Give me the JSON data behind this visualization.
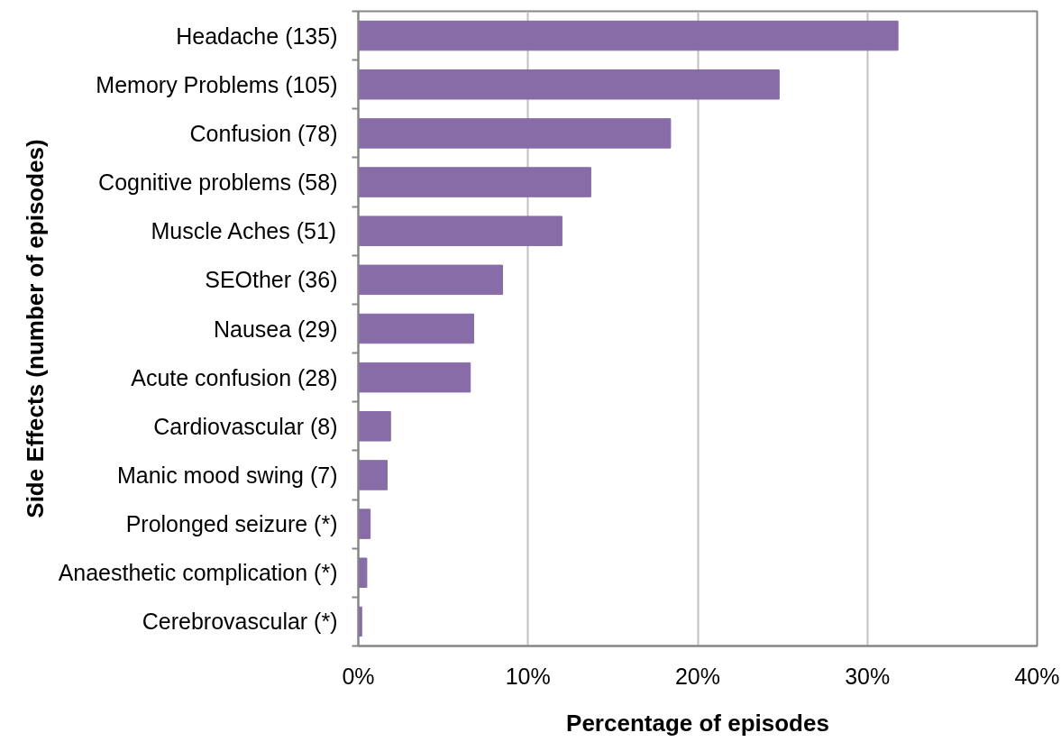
{
  "chart_data": {
    "type": "bar",
    "orientation": "horizontal",
    "xlabel": "Percentage of episodes",
    "ylabel": "Side Effects (number of episodes)",
    "categories": [
      "Headache (135)",
      "Memory Problems (105)",
      "Confusion (78)",
      "Cognitive problems (58)",
      "Muscle Aches (51)",
      "SEOther (36)",
      "Nausea (29)",
      "Acute confusion (28)",
      "Cardiovascular (8)",
      "Manic mood swing (7)",
      "Prolonged seizure (*)",
      "Anaesthetic complication (*)",
      "Cerebrovascular (*)"
    ],
    "values": [
      31.8,
      24.8,
      18.4,
      13.7,
      12.0,
      8.5,
      6.8,
      6.6,
      1.9,
      1.7,
      0.7,
      0.5,
      0.2
    ],
    "color": "#886ca8",
    "xlim": [
      0,
      40
    ],
    "xticks": [
      {
        "value": 0,
        "label": "0%"
      },
      {
        "value": 10,
        "label": "10%"
      },
      {
        "value": 20,
        "label": "20%"
      },
      {
        "value": 30,
        "label": "30%"
      },
      {
        "value": 40,
        "label": "40%"
      }
    ],
    "grid": "x"
  }
}
